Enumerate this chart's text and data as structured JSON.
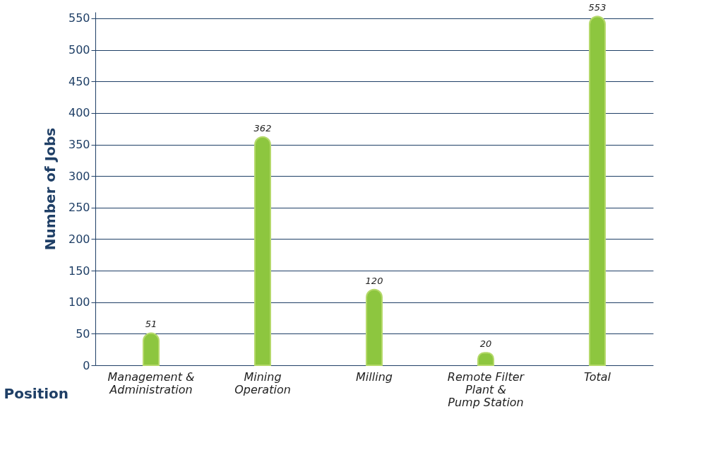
{
  "chart_data": {
    "type": "bar",
    "xlabel": "Position",
    "ylabel": "Number of Jobs",
    "categories": [
      "Management &\nAdministration",
      "Mining\nOperation",
      "Milling",
      "Remote Filter\nPlant &\nPump Station",
      "Total"
    ],
    "values": [
      51,
      362,
      120,
      20,
      553
    ],
    "color": "#8dc63f",
    "ylim": [
      0,
      560
    ],
    "yticks": [
      0,
      50,
      100,
      150,
      200,
      250,
      300,
      350,
      400,
      450,
      500,
      550
    ],
    "grid": "y",
    "data_labels": true
  }
}
